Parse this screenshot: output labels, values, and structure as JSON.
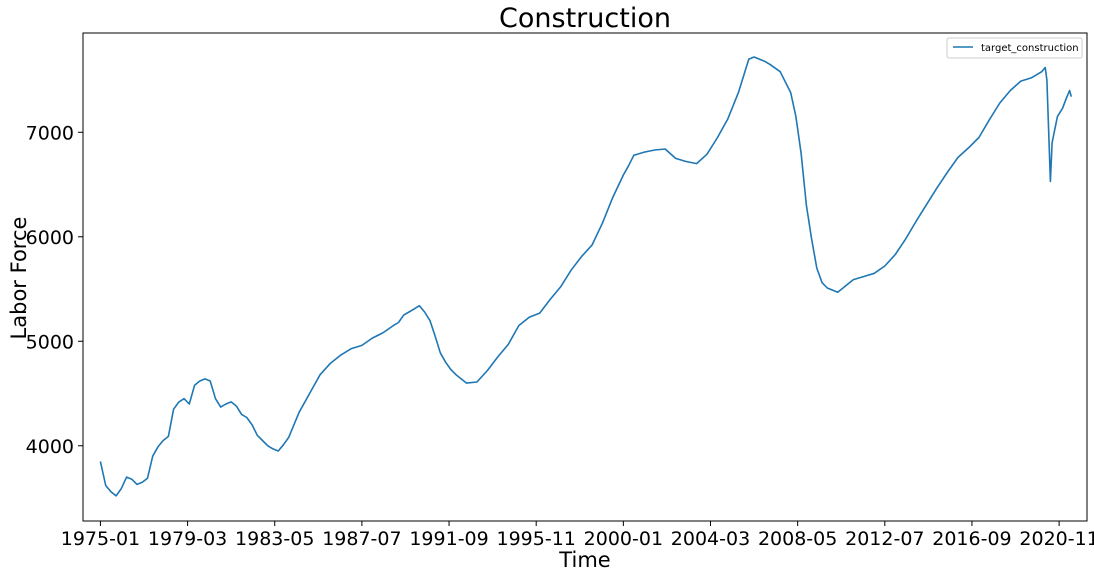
{
  "chart_data": {
    "type": "line",
    "title": "Construction",
    "xlabel": "Time",
    "ylabel": "Labor Force",
    "legend_position": "top-right",
    "grid": false,
    "line_color": "#1f77b4",
    "ylim": [
      3280,
      7950
    ],
    "xlim": [
      "1974-03",
      "2022-03"
    ],
    "x_ticks": [
      "1975-01",
      "1979-03",
      "1983-05",
      "1987-07",
      "1991-09",
      "1995-11",
      "2000-01",
      "2004-03",
      "2008-05",
      "2012-07",
      "2016-09",
      "2020-11"
    ],
    "y_ticks": [
      4000,
      5000,
      6000,
      7000
    ],
    "series": [
      {
        "name": "target_construction",
        "x": [
          "1975-01",
          "1975-04",
          "1975-07",
          "1975-10",
          "1976-01",
          "1976-04",
          "1976-07",
          "1976-10",
          "1977-01",
          "1977-04",
          "1977-07",
          "1977-10",
          "1978-01",
          "1978-04",
          "1978-07",
          "1978-10",
          "1979-01",
          "1979-04",
          "1979-07",
          "1979-10",
          "1980-01",
          "1980-04",
          "1980-07",
          "1980-10",
          "1981-01",
          "1981-04",
          "1981-07",
          "1981-10",
          "1982-01",
          "1982-04",
          "1982-07",
          "1982-10",
          "1983-01",
          "1983-04",
          "1983-07",
          "1983-10",
          "1984-01",
          "1984-07",
          "1985-01",
          "1985-07",
          "1986-01",
          "1986-07",
          "1987-01",
          "1987-07",
          "1988-01",
          "1988-07",
          "1989-01",
          "1989-04",
          "1989-07",
          "1989-10",
          "1990-01",
          "1990-04",
          "1990-07",
          "1990-10",
          "1991-01",
          "1991-04",
          "1991-07",
          "1991-10",
          "1992-01",
          "1992-07",
          "1993-01",
          "1993-07",
          "1994-01",
          "1994-07",
          "1995-01",
          "1995-07",
          "1996-01",
          "1996-07",
          "1997-01",
          "1997-07",
          "1998-01",
          "1998-07",
          "1999-01",
          "1999-07",
          "2000-01",
          "2000-04",
          "2000-07",
          "2001-01",
          "2001-07",
          "2002-01",
          "2002-07",
          "2003-01",
          "2003-07",
          "2004-01",
          "2004-07",
          "2005-01",
          "2005-07",
          "2006-01",
          "2006-04",
          "2006-07",
          "2006-10",
          "2007-01",
          "2007-07",
          "2008-01",
          "2008-04",
          "2008-07",
          "2008-10",
          "2009-01",
          "2009-04",
          "2009-07",
          "2009-10",
          "2010-01",
          "2010-04",
          "2010-07",
          "2010-10",
          "2011-01",
          "2011-07",
          "2012-01",
          "2012-07",
          "2013-01",
          "2013-07",
          "2014-01",
          "2014-07",
          "2015-01",
          "2015-07",
          "2016-01",
          "2016-07",
          "2017-01",
          "2017-07",
          "2018-01",
          "2018-07",
          "2019-01",
          "2019-07",
          "2019-10",
          "2020-01",
          "2020-02",
          "2020-03",
          "2020-04",
          "2020-05",
          "2020-06",
          "2020-07",
          "2020-10",
          "2021-01",
          "2021-03",
          "2021-05",
          "2021-06"
        ],
        "values": [
          3850,
          3620,
          3560,
          3520,
          3590,
          3700,
          3680,
          3630,
          3650,
          3690,
          3900,
          3990,
          4050,
          4090,
          4350,
          4420,
          4450,
          4400,
          4580,
          4620,
          4640,
          4620,
          4450,
          4370,
          4400,
          4420,
          4380,
          4300,
          4270,
          4200,
          4100,
          4050,
          4000,
          3970,
          3950,
          4010,
          4080,
          4320,
          4500,
          4680,
          4790,
          4870,
          4930,
          4960,
          5030,
          5080,
          5150,
          5180,
          5250,
          5280,
          5310,
          5340,
          5280,
          5200,
          5050,
          4890,
          4800,
          4730,
          4680,
          4600,
          4610,
          4720,
          4850,
          4970,
          5150,
          5230,
          5270,
          5400,
          5520,
          5680,
          5810,
          5920,
          6130,
          6380,
          6590,
          6680,
          6780,
          6810,
          6830,
          6840,
          6750,
          6720,
          6700,
          6790,
          6950,
          7130,
          7380,
          7700,
          7720,
          7700,
          7680,
          7650,
          7580,
          7380,
          7150,
          6800,
          6300,
          5980,
          5700,
          5560,
          5510,
          5490,
          5470,
          5510,
          5550,
          5590,
          5620,
          5650,
          5720,
          5830,
          5980,
          6150,
          6310,
          6470,
          6620,
          6760,
          6850,
          6950,
          7120,
          7280,
          7400,
          7490,
          7520,
          7550,
          7580,
          7600,
          7620,
          7500,
          7000,
          6530,
          6900,
          7150,
          7230,
          7320,
          7400,
          7340
        ]
      }
    ]
  }
}
